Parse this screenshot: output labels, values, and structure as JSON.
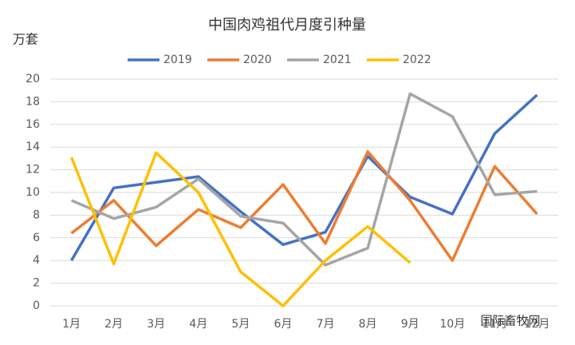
{
  "chart_data": {
    "type": "line",
    "title": "中国肉鸡祖代月度引种量",
    "y_label": "万套",
    "categories": [
      "1月",
      "2月",
      "3月",
      "4月",
      "5月",
      "6月",
      "7月",
      "8月",
      "9月",
      "10月",
      "11月",
      "12月"
    ],
    "series": [
      {
        "name": "2019",
        "color": "#4472c4",
        "values": [
          4.0,
          10.4,
          10.9,
          11.4,
          8.3,
          5.4,
          6.5,
          13.2,
          9.6,
          8.1,
          15.2,
          18.6
        ]
      },
      {
        "name": "2020",
        "color": "#ed7d31",
        "values": [
          6.4,
          9.3,
          5.3,
          8.5,
          6.9,
          10.7,
          5.5,
          13.6,
          9.3,
          4.0,
          12.3,
          8.1
        ]
      },
      {
        "name": "2021",
        "color": "#a5a5a5",
        "values": [
          9.3,
          7.7,
          8.7,
          11.2,
          7.9,
          7.3,
          3.6,
          5.1,
          18.7,
          16.7,
          9.8,
          10.1
        ]
      },
      {
        "name": "2022",
        "color": "#ffc000",
        "values": [
          13.1,
          3.7,
          13.5,
          10.0,
          3.0,
          0.0,
          4.0,
          7.0,
          3.8,
          null,
          null,
          null
        ]
      }
    ],
    "ylim": [
      0,
      20
    ],
    "yticks": [
      0,
      2,
      4,
      6,
      8,
      10,
      12,
      14,
      16,
      18,
      20
    ],
    "grid": true,
    "legend": "top",
    "watermark": "国际畜牧网"
  }
}
